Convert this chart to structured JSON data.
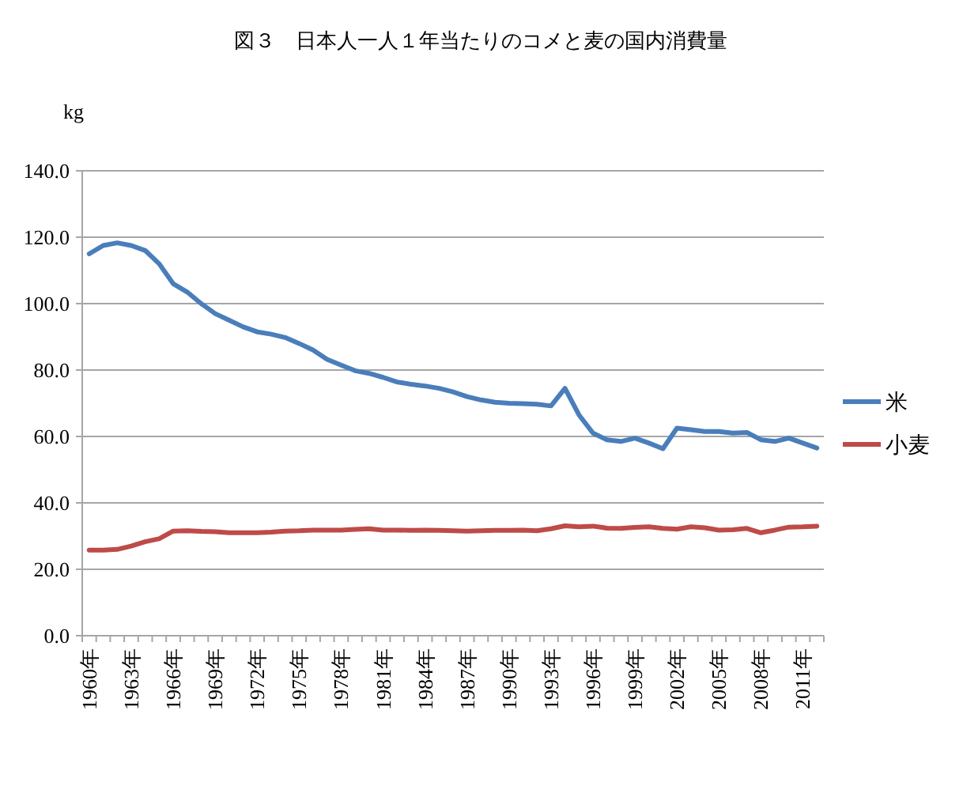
{
  "chart_data": {
    "type": "line",
    "title": "図３　日本人一人１年当たりのコメと麦の国内消費量",
    "ylabel": "kg",
    "categories": [
      "1960年",
      null,
      null,
      "1963年",
      null,
      null,
      "1966年",
      null,
      null,
      "1969年",
      null,
      null,
      "1972年",
      null,
      null,
      "1975年",
      null,
      null,
      "1978年",
      null,
      null,
      "1981年",
      null,
      null,
      "1984年",
      null,
      null,
      "1987年",
      null,
      null,
      "1990年",
      null,
      null,
      "1993年",
      null,
      null,
      "1996年",
      null,
      null,
      "1999年",
      null,
      null,
      "2002年",
      null,
      null,
      "2005年",
      null,
      null,
      "2008年",
      null,
      null,
      "2011年",
      null
    ],
    "series": [
      {
        "name": "米",
        "color": "#4a7ebb",
        "values": [
          115,
          117.5,
          118.3,
          117.5,
          116,
          112,
          106,
          103.5,
          100,
          97,
          95,
          93,
          91.5,
          90.8,
          89.8,
          88,
          86,
          83.2,
          81.5,
          79.8,
          79,
          77.8,
          76.4,
          75.7,
          75.2,
          74.5,
          73.4,
          72,
          71,
          70.3,
          70,
          69.9,
          69.7,
          69.2,
          74.5,
          66.5,
          61,
          59,
          58.5,
          59.5,
          58,
          56.3,
          62.5,
          62,
          61.5,
          61.5,
          61,
          61.2,
          59,
          58.5,
          59.5,
          58,
          56.5
        ]
      },
      {
        "name": "小麦",
        "color": "#be4b48",
        "values": [
          25.8,
          25.8,
          26,
          27,
          28.3,
          29.2,
          31.5,
          31.6,
          31.4,
          31.3,
          31,
          31,
          31,
          31.2,
          31.5,
          31.6,
          31.8,
          31.8,
          31.8,
          32,
          32.2,
          31.8,
          31.8,
          31.7,
          31.8,
          31.7,
          31.6,
          31.5,
          31.6,
          31.7,
          31.7,
          31.8,
          31.6,
          32.2,
          33.1,
          32.8,
          33,
          32.4,
          32.3,
          32.6,
          32.8,
          32.3,
          32.1,
          32.8,
          32.5,
          31.8,
          31.9,
          32.3,
          31,
          31.8,
          32.7,
          32.8,
          33
        ]
      }
    ],
    "ylim": [
      0,
      140
    ],
    "yticks": [
      {
        "value": 0,
        "label": "0.0"
      },
      {
        "value": 20,
        "label": "20.0"
      },
      {
        "value": 40,
        "label": "40.0"
      },
      {
        "value": 60,
        "label": "60.0"
      },
      {
        "value": 80,
        "label": "80.0"
      },
      {
        "value": 100,
        "label": "100.0"
      },
      {
        "value": 120,
        "label": "120.0"
      },
      {
        "value": 140,
        "label": "140.0"
      }
    ],
    "grid": "y",
    "legend": "right",
    "marker": "none",
    "line_style": "solid"
  }
}
